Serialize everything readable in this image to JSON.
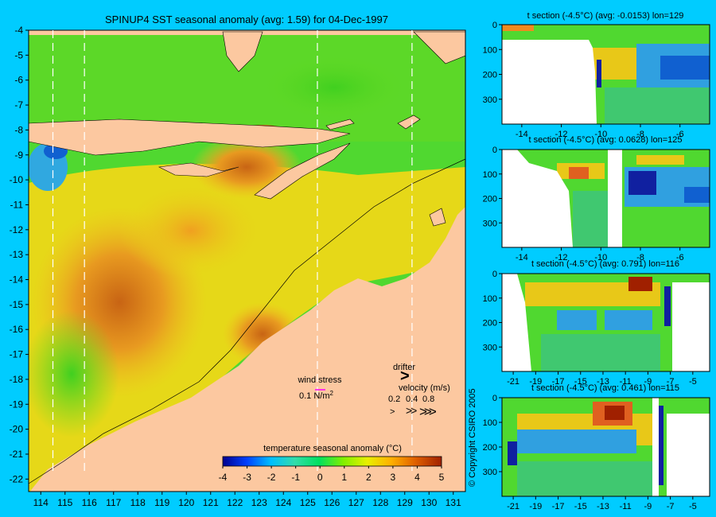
{
  "main_map": {
    "title": "SPINUP4 SST seasonal anomaly (avg: 1.59) for 04-Dec-1997",
    "x_ticks": [
      "114",
      "115",
      "116",
      "117",
      "118",
      "119",
      "120",
      "121",
      "122",
      "123",
      "124",
      "125",
      "126",
      "127",
      "128",
      "129",
      "130",
      "131"
    ],
    "y_ticks": [
      "-4",
      "-5",
      "-6",
      "-7",
      "-8",
      "-9",
      "-10",
      "-11",
      "-12",
      "-13",
      "-14",
      "-15",
      "-16",
      "-17",
      "-18",
      "-19",
      "-20",
      "-21",
      "-22"
    ],
    "section_longitudes": [
      114.5,
      115.8,
      125.4,
      129.3
    ],
    "wind_stress": {
      "label": "wind stress",
      "scale_label": "0.1 N/m",
      "unit_exp": "2",
      "arrow_color": "#ff00ff"
    },
    "drifter": {
      "label": "drifter",
      "marker": ">",
      "marker_color": "#ff00ff"
    },
    "velocity": {
      "label": "velocity (m/s)",
      "values": [
        "0.2",
        "0.4",
        "0.8"
      ],
      "arrows": [
        ">",
        ">>",
        ">>>"
      ]
    },
    "colorbar": {
      "label": "temperature seasonal anomaly (°C)",
      "ticks": [
        "-4",
        "-3",
        "-2",
        "-1",
        "0",
        "1",
        "2",
        "3",
        "4",
        "5"
      ],
      "min": -4,
      "max": 5,
      "colors": [
        "#00008f",
        "#0040ff",
        "#00bfff",
        "#33ddaa",
        "#00e060",
        "#80f000",
        "#e8f000",
        "#ffb000",
        "#e06000",
        "#a02000"
      ]
    }
  },
  "copyright": "© Copyright CSIRO 2005",
  "sections": [
    {
      "title": "t section (-4.5°C) (avg: -0.0153) lon=129",
      "x_ticks": [
        "-14",
        "-12",
        "-10",
        "-8",
        "-6"
      ],
      "y_ticks": [
        "0",
        "100",
        "200",
        "300"
      ]
    },
    {
      "title": "t section (-4.5°C) (avg: 0.0628) lon=125",
      "x_ticks": [
        "-14",
        "-12",
        "-10",
        "-8",
        "-6"
      ],
      "y_ticks": [
        "0",
        "100",
        "200",
        "300"
      ]
    },
    {
      "title": "t section (-4.5°C) (avg: 0.791) lon=116",
      "x_ticks": [
        "-21",
        "-19",
        "-17",
        "-15",
        "-13",
        "-11",
        "-9",
        "-7",
        "-5"
      ],
      "y_ticks": [
        "0",
        "100",
        "200",
        "300"
      ]
    },
    {
      "title": "t section (-4.5°C) (avg: 0.461) lon=115",
      "x_ticks": [
        "-21",
        "-19",
        "-17",
        "-15",
        "-13",
        "-11",
        "-9",
        "-7",
        "-5"
      ],
      "y_ticks": [
        "0",
        "100",
        "200",
        "300"
      ]
    }
  ],
  "chart_data": [
    {
      "type": "heatmap",
      "title": "SPINUP4 SST seasonal anomaly (avg: 1.59) for 04-Dec-1997",
      "xlim": [
        113.5,
        131.5
      ],
      "ylim": [
        -22.5,
        -4
      ],
      "colorbar_range": [
        -4,
        5
      ],
      "colorbar_label": "temperature seasonal anomaly (°C)",
      "average": 1.59,
      "date": "04-Dec-1997"
    },
    {
      "type": "heatmap",
      "title": "t section (-4.5°C) (avg: -0.0153) lon=129",
      "lon": 129,
      "average": -0.0153,
      "xlim": [
        -15,
        -4.5
      ],
      "depth_range": [
        0,
        400
      ]
    },
    {
      "type": "heatmap",
      "title": "t section (-4.5°C) (avg: 0.0628) lon=125",
      "lon": 125,
      "average": 0.0628,
      "xlim": [
        -15,
        -4.5
      ],
      "depth_range": [
        0,
        400
      ]
    },
    {
      "type": "heatmap",
      "title": "t section (-4.5°C) (avg: 0.791) lon=116",
      "lon": 116,
      "average": 0.791,
      "xlim": [
        -22,
        -3.5
      ],
      "depth_range": [
        0,
        400
      ]
    },
    {
      "type": "heatmap",
      "title": "t section (-4.5°C) (avg: 0.461) lon=115",
      "lon": 115,
      "average": 0.461,
      "xlim": [
        -22,
        -3.5
      ],
      "depth_range": [
        0,
        400
      ]
    }
  ]
}
